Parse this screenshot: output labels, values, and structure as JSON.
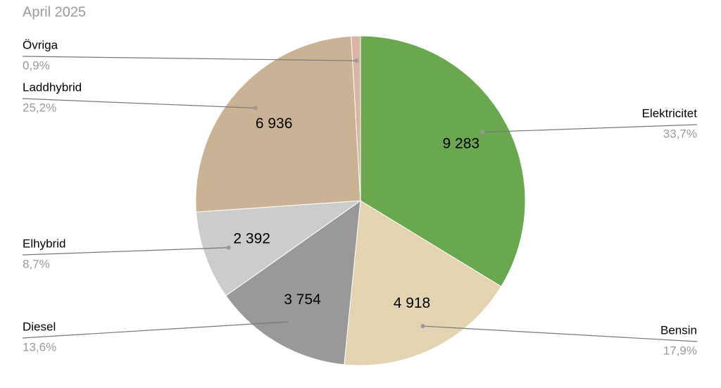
{
  "chart_data": {
    "type": "pie",
    "title": "April 2025",
    "categories": [
      "Elektricitet",
      "Bensin",
      "Diesel",
      "Elhybrid",
      "Laddhybrid",
      "Övriga"
    ],
    "values": [
      9283,
      4918,
      3754,
      2392,
      6936,
      248
    ],
    "value_labels": [
      "9 283",
      "4 918",
      "3 754",
      "2 392",
      "6 936",
      null
    ],
    "percentages": [
      33.7,
      17.9,
      13.6,
      8.7,
      25.2,
      0.9
    ],
    "percentage_labels": [
      "33,7%",
      "17,9%",
      "13,6%",
      "8,7%",
      "25,2%",
      "0,9%"
    ],
    "colors": [
      "#6aa84f",
      "#e3d3b0",
      "#999999",
      "#cccccc",
      "#c9b394",
      "#dab3a6"
    ]
  }
}
